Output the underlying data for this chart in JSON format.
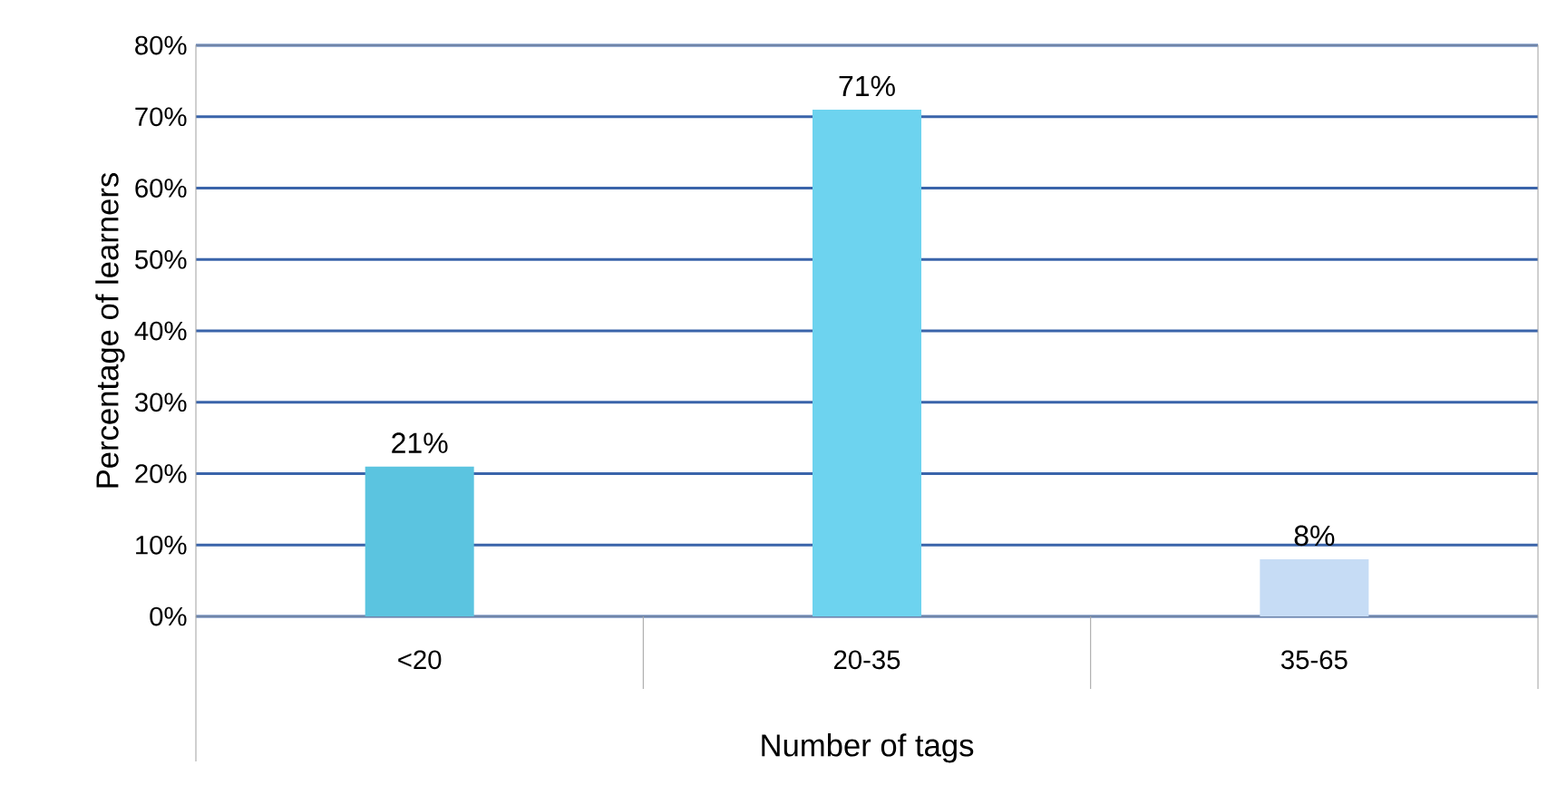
{
  "chart_data": {
    "type": "bar",
    "xlabel": "Number of tags",
    "ylabel": "Percentage of learners",
    "categories": [
      "<20",
      "20-35",
      "35-65"
    ],
    "values": [
      21,
      71,
      8
    ],
    "colors": [
      "#5bc4e0",
      "#6dd3ef",
      "#c6dcf5"
    ],
    "value_labels": [
      "21%",
      "71%",
      "8%"
    ],
    "ylim": [
      0,
      80
    ],
    "yticks": [
      {
        "value": 0,
        "label": "0%"
      },
      {
        "value": 10,
        "label": "10%"
      },
      {
        "value": 20,
        "label": "20%"
      },
      {
        "value": 30,
        "label": "30%"
      },
      {
        "value": 40,
        "label": "40%"
      },
      {
        "value": 50,
        "label": "50%"
      },
      {
        "value": 60,
        "label": "60%"
      },
      {
        "value": 70,
        "label": "70%"
      },
      {
        "value": 80,
        "label": "80%"
      }
    ],
    "grid": "y"
  }
}
